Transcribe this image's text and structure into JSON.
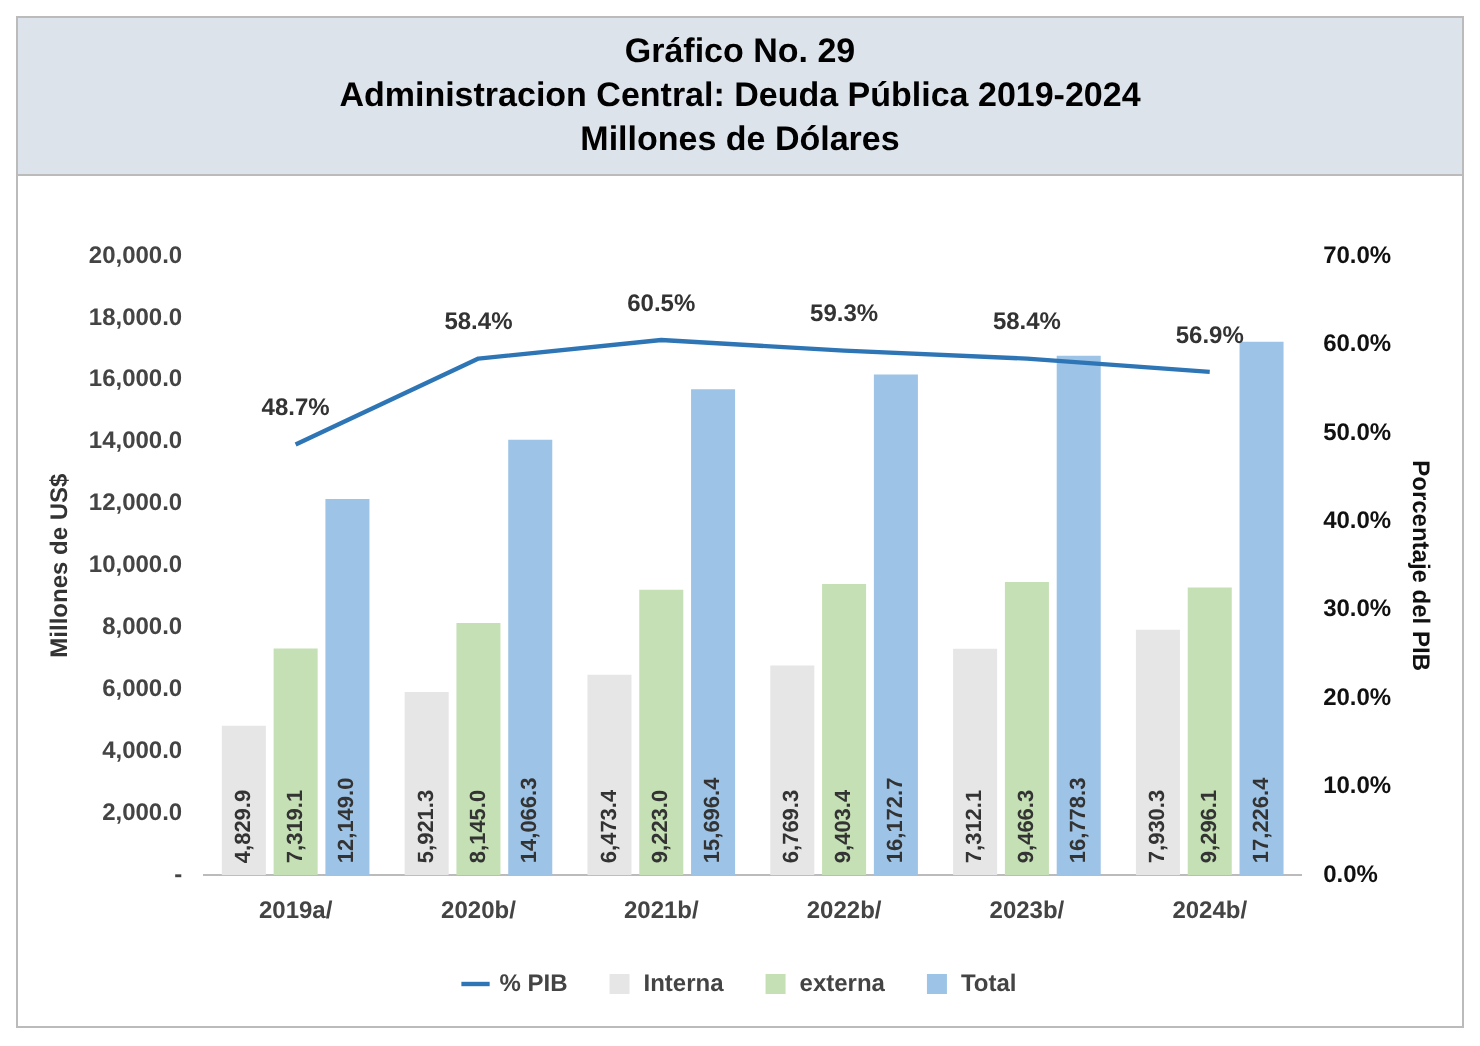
{
  "chart_data": {
    "type": "bar",
    "title": "Gráfico No. 29",
    "subtitle": "Administracion Central: Deuda Pública  2019-2024",
    "annotations": [
      "Millones de Dólares"
    ],
    "ylabel": "Millones de US$",
    "y2label": "Porcentaje del PIB",
    "categories": [
      "2019a/",
      "2020b/",
      "2021b/",
      "2022b/",
      "2023b/",
      "2024b/"
    ],
    "series": [
      {
        "name": "Interna",
        "color": "#e7e6e6",
        "values": [
          4829.9,
          5921.3,
          6473.4,
          6769.3,
          7312.1,
          7930.3
        ],
        "value_labels": [
          "4,829.9",
          "5,921.3",
          "6,473.4",
          "6,769.3",
          "7,312.1",
          "7,930.3"
        ]
      },
      {
        "name": "externa",
        "color": "#c5e0b4",
        "values": [
          7319.1,
          8145.0,
          9223.0,
          9403.4,
          9466.3,
          9296.1
        ],
        "value_labels": [
          "7,319.1",
          "8,145.0",
          "9,223.0",
          "9,403.4",
          "9,466.3",
          "9,296.1"
        ]
      },
      {
        "name": "Total",
        "color": "#9dc3e6",
        "values": [
          12149.0,
          14066.3,
          15696.4,
          16172.7,
          16778.3,
          17226.4
        ],
        "value_labels": [
          "12,149.0",
          "14,066.3",
          "15,696.4",
          "16,172.7",
          "16,778.3",
          "17,226.4"
        ]
      },
      {
        "name": "% PIB",
        "type": "line",
        "axis": "y2",
        "color": "#2e75b6",
        "marker": "none",
        "values": [
          48.7,
          58.4,
          60.5,
          59.3,
          58.4,
          56.9
        ],
        "value_labels": [
          "48.7%",
          "58.4%",
          "60.5%",
          "59.3%",
          "58.4%",
          "56.9%"
        ]
      }
    ],
    "ylim": [
      0,
      20000
    ],
    "yticks": [
      {
        "value": 0,
        "label": "-"
      },
      {
        "value": 2000,
        "label": "2,000.0"
      },
      {
        "value": 4000,
        "label": "4,000.0"
      },
      {
        "value": 6000,
        "label": "6,000.0"
      },
      {
        "value": 8000,
        "label": "8,000.0"
      },
      {
        "value": 10000,
        "label": "10,000.0"
      },
      {
        "value": 12000,
        "label": "12,000.0"
      },
      {
        "value": 14000,
        "label": "14,000.0"
      },
      {
        "value": 16000,
        "label": "16,000.0"
      },
      {
        "value": 18000,
        "label": "18,000.0"
      },
      {
        "value": 20000,
        "label": "20,000.0"
      }
    ],
    "y2lim": [
      0,
      70
    ],
    "y2ticks": [
      {
        "value": 0,
        "label": "0.0%"
      },
      {
        "value": 10,
        "label": "10.0%"
      },
      {
        "value": 20,
        "label": "20.0%"
      },
      {
        "value": 30,
        "label": "30.0%"
      },
      {
        "value": 40,
        "label": "40.0%"
      },
      {
        "value": 50,
        "label": "50.0%"
      },
      {
        "value": 60,
        "label": "60.0%"
      },
      {
        "value": 70,
        "label": "70.0%"
      }
    ],
    "grid": false,
    "legend": "bottom"
  }
}
